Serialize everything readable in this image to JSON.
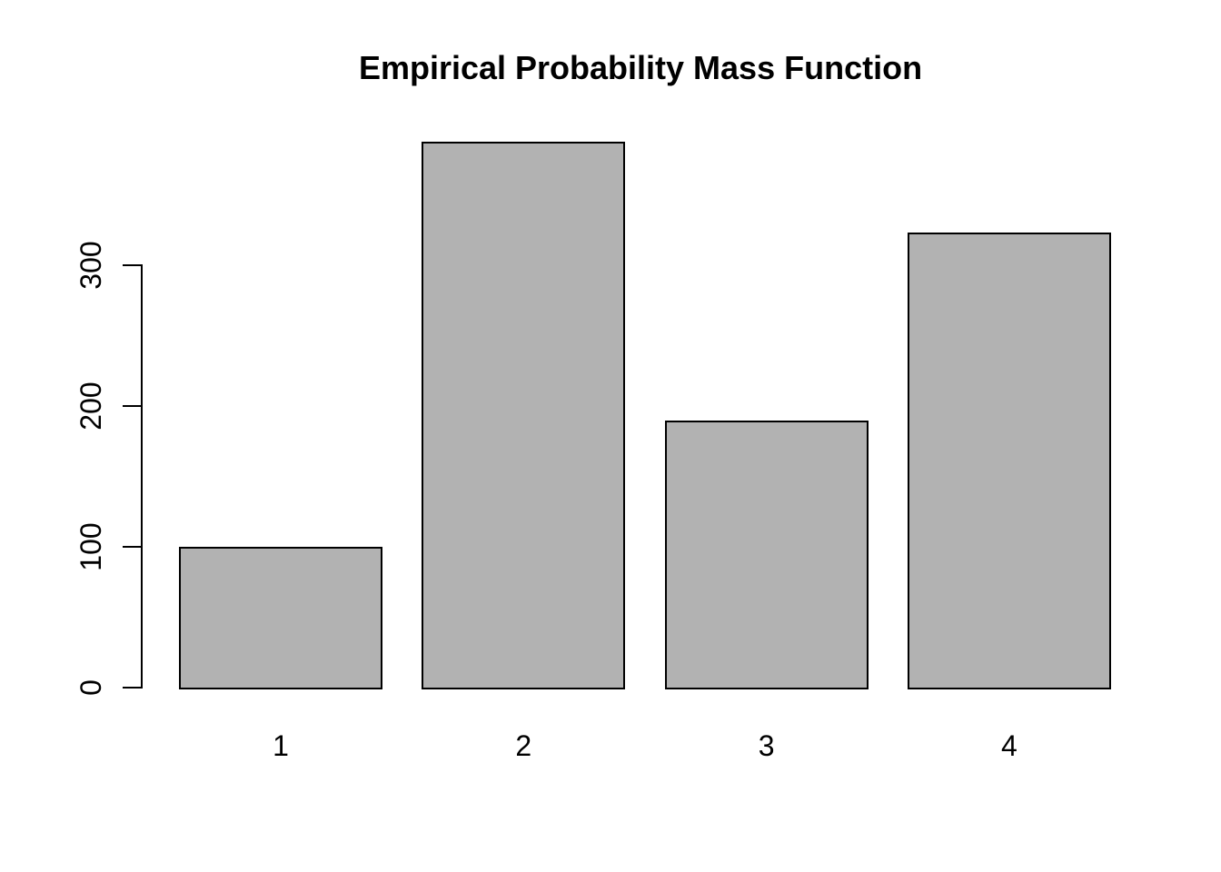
{
  "chart_data": {
    "type": "bar",
    "title": "Empirical Probability Mass Function",
    "categories": [
      "1",
      "2",
      "3",
      "4"
    ],
    "values": [
      100,
      388,
      190,
      323
    ],
    "xlabel": "",
    "ylabel": "",
    "yticks": [
      0,
      100,
      200,
      300
    ],
    "ylim": [
      0,
      400
    ],
    "grid": false,
    "legend_position": "none",
    "colors": {
      "bar_fill": "#b2b2b2",
      "bar_border": "#000000",
      "axis": "#000000",
      "text": "#000000",
      "background": "#ffffff"
    }
  }
}
